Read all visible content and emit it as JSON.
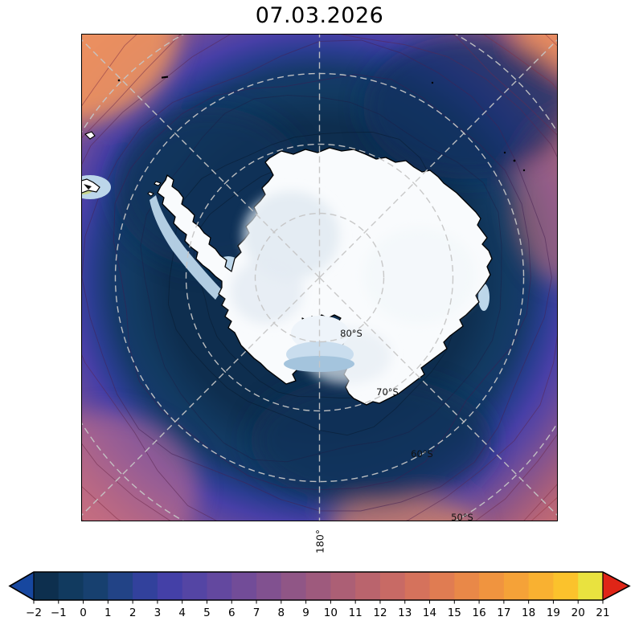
{
  "title": "07.03.2026",
  "map": {
    "latitude_labels": [
      "80°S",
      "70°S",
      "60°S",
      "50°S"
    ],
    "meridian_label": "180°"
  },
  "colorbar": {
    "tick_labels": [
      "−2",
      "−1",
      "0",
      "1",
      "2",
      "3",
      "4",
      "5",
      "6",
      "7",
      "8",
      "9",
      "10",
      "11",
      "12",
      "13",
      "14",
      "15",
      "16",
      "17",
      "18",
      "19",
      "20",
      "21"
    ],
    "bin_colors": [
      "#0d2f4e",
      "#113a5f",
      "#17406f",
      "#224386",
      "#32419c",
      "#4440a7",
      "#5445a4",
      "#63489f",
      "#724c98",
      "#815190",
      "#905686",
      "#9e5a7d",
      "#ac5f75",
      "#ba646d",
      "#c86a65",
      "#d5725c",
      "#e07c52",
      "#e98848",
      "#f0943f",
      "#f5a238",
      "#f9b131",
      "#fbc22c",
      "#e9e23f"
    ],
    "under_color": "#17479f",
    "over_color": "#df2517"
  },
  "chart_data": {
    "type": "heatmap",
    "title": "07.03.2026",
    "projection": "south-polar-stereographic",
    "region": "Antarctica / Southern Ocean",
    "colorbar_ticks": [
      -2,
      -1,
      0,
      1,
      2,
      3,
      4,
      5,
      6,
      7,
      8,
      9,
      10,
      11,
      12,
      13,
      14,
      15,
      16,
      17,
      18,
      19,
      20,
      21
    ],
    "colorbar_range": [
      -2,
      21
    ],
    "colorbar_extend": "both",
    "gridline_latitudes_deg_south": [
      80,
      70,
      60,
      50
    ],
    "labeled_meridian_deg": 180,
    "legend_position": "bottom"
  }
}
